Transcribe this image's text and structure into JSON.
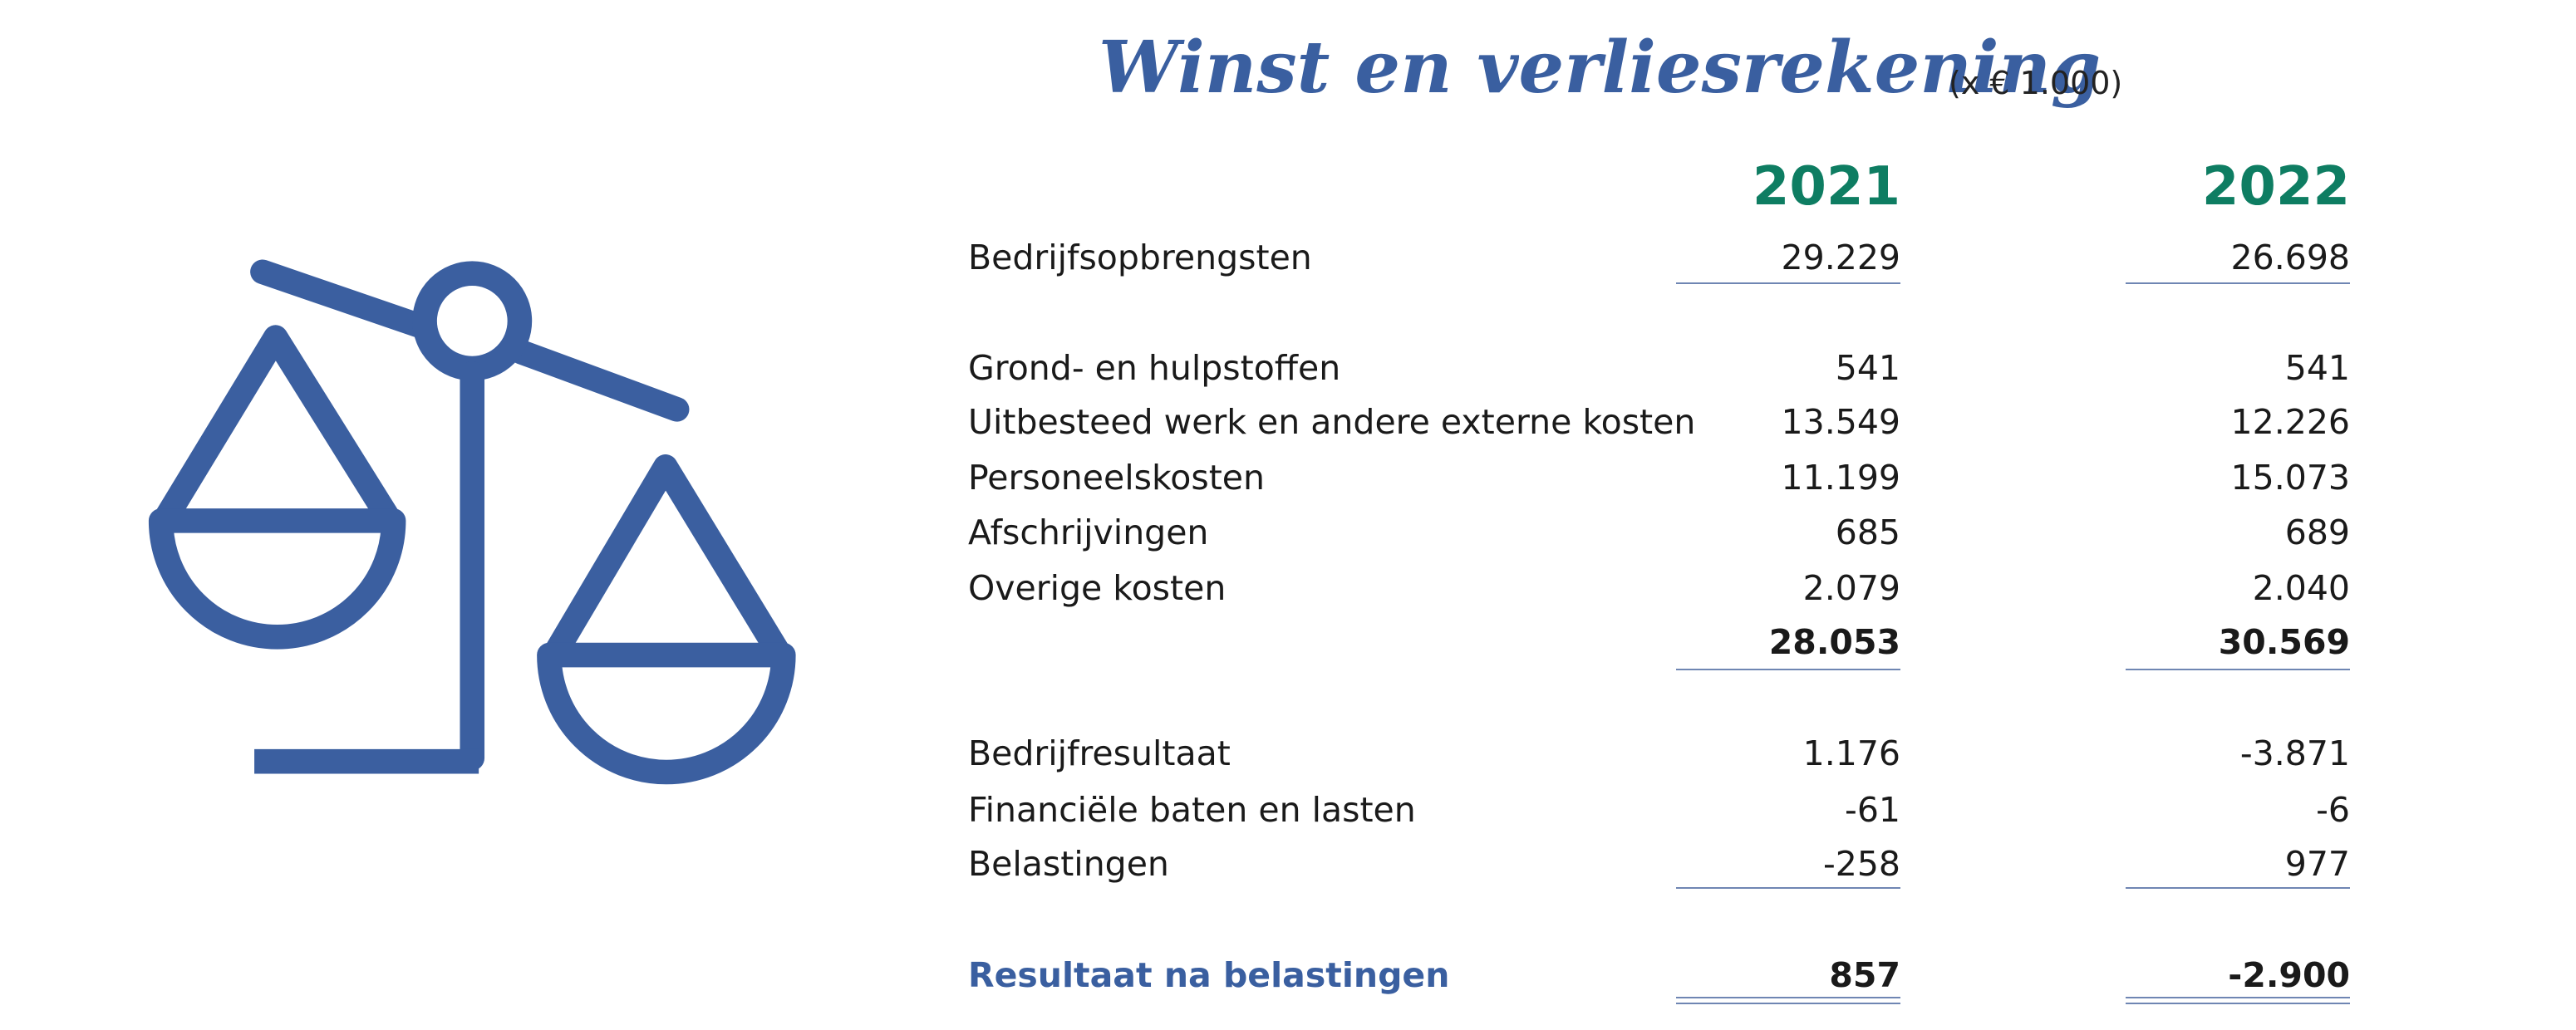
{
  "header": {
    "title": "Winst en verliesrekening",
    "unit": "(x € 1.000)"
  },
  "table": {
    "columns": [
      "2021",
      "2022"
    ],
    "sections": [
      {
        "rows": [
          {
            "label": "Bedrijfsopbrengsten",
            "values": [
              "29.229",
              "26.698"
            ]
          }
        ]
      },
      {
        "rows": [
          {
            "label": "Grond- en hulpstoffen",
            "values": [
              "541",
              "541"
            ]
          },
          {
            "label": "Uitbesteed werk en andere externe kosten",
            "values": [
              "13.549",
              "12.226"
            ]
          },
          {
            "label": "Personeelskosten",
            "values": [
              "11.199",
              "15.073"
            ]
          },
          {
            "label": "Afschrijvingen",
            "values": [
              "685",
              "689"
            ]
          },
          {
            "label": "Overige kosten",
            "values": [
              "2.079",
              "2.040"
            ]
          }
        ],
        "total": [
          "28.053",
          "30.569"
        ]
      },
      {
        "rows": [
          {
            "label": "Bedrijfresultaat",
            "values": [
              "1.176",
              "-3.871"
            ]
          },
          {
            "label": "Financiële baten en lasten",
            "values": [
              "-61",
              "-6"
            ]
          },
          {
            "label": "Belastingen",
            "values": [
              "-258",
              "977"
            ]
          }
        ]
      }
    ],
    "result": {
      "label": "Resultaat na belastingen",
      "values": [
        "857",
        "-2.900"
      ]
    }
  }
}
